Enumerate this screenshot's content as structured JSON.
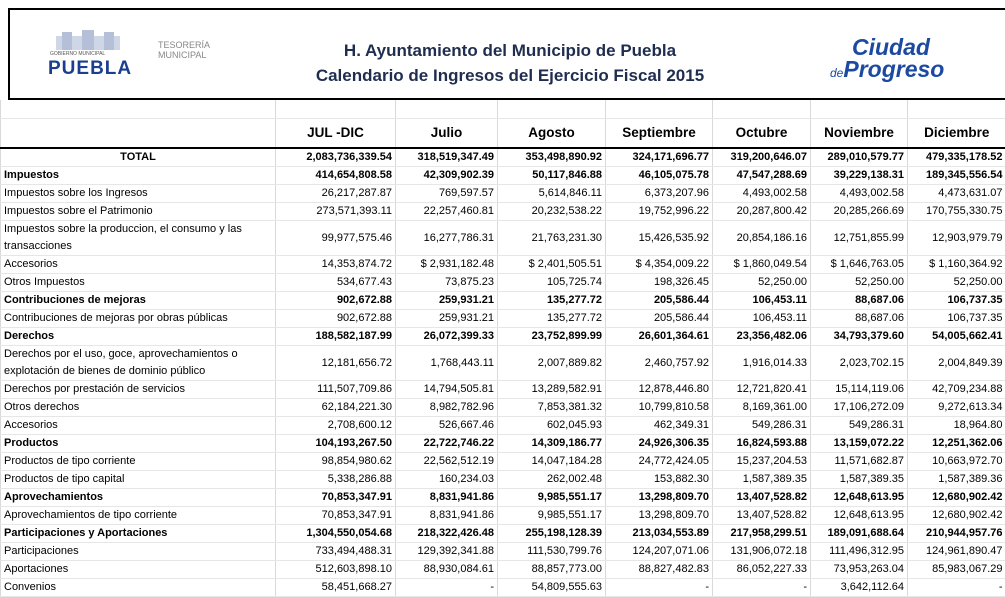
{
  "header": {
    "logo_left": {
      "name": "PUEBLA",
      "subtitle": "GOBIERNO MUNICIPAL",
      "dept": "TESORERÍA MUNICIPAL"
    },
    "title": "H. Ayuntamiento del Municipio de Puebla",
    "subtitle": "Calendario de Ingresos del Ejercicio Fiscal 2015",
    "logo_right": {
      "line1": "Ciudad",
      "small": "de",
      "line2": "Progreso"
    }
  },
  "table": {
    "columns": [
      "JUL -DIC",
      "Julio",
      "Agosto",
      "Septiembre",
      "Octubre",
      "Noviembre",
      "Diciembre"
    ],
    "rows": [
      {
        "label": "TOTAL",
        "bold": true,
        "center": true,
        "cells": [
          "2,083,736,339.54",
          "318,519,347.49",
          "353,498,890.92",
          "324,171,696.77",
          "319,200,646.07",
          "289,010,579.77",
          "479,335,178.52"
        ]
      },
      {
        "label": "Impuestos",
        "bold": true,
        "cells": [
          "414,654,808.58",
          "42,309,902.39",
          "50,117,846.88",
          "46,105,075.78",
          "47,547,288.69",
          "39,229,138.31",
          "189,345,556.54"
        ]
      },
      {
        "label": "Impuestos sobre los Ingresos",
        "cells": [
          "26,217,287.87",
          "769,597.57",
          "5,614,846.11",
          "6,373,207.96",
          "4,493,002.58",
          "4,493,002.58",
          "4,473,631.07"
        ]
      },
      {
        "label": "Impuestos sobre el Patrimonio",
        "cells": [
          "273,571,393.11",
          "22,257,460.81",
          "20,232,538.22",
          "19,752,996.22",
          "20,287,800.42",
          "20,285,266.69",
          "170,755,330.75"
        ]
      },
      {
        "label": "Impuestos sobre la produccion, el consumo y las transacciones",
        "cells": [
          "99,977,575.46",
          "16,277,786.31",
          "21,763,231.30",
          "15,426,535.92",
          "20,854,186.16",
          "12,751,855.99",
          "12,903,979.79"
        ]
      },
      {
        "label": "Accesorios",
        "cells": [
          "14,353,874.72",
          "$ 2,931,182.48",
          "$ 2,401,505.51",
          "$ 4,354,009.22",
          "$ 1,860,049.54",
          "$ 1,646,763.05",
          "$ 1,160,364.92"
        ]
      },
      {
        "label": "Otros Impuestos",
        "cells": [
          "534,677.43",
          "73,875.23",
          "105,725.74",
          "198,326.45",
          "52,250.00",
          "52,250.00",
          "52,250.00"
        ]
      },
      {
        "label": "Contribuciones de mejoras",
        "bold": true,
        "cells": [
          "902,672.88",
          "259,931.21",
          "135,277.72",
          "205,586.44",
          "106,453.11",
          "88,687.06",
          "106,737.35"
        ]
      },
      {
        "label": "Contribuciones de mejoras por obras públicas",
        "cells": [
          "902,672.88",
          "259,931.21",
          "135,277.72",
          "205,586.44",
          "106,453.11",
          "88,687.06",
          "106,737.35"
        ]
      },
      {
        "label": "Derechos",
        "bold": true,
        "cells": [
          "188,582,187.99",
          "26,072,399.33",
          "23,752,899.99",
          "26,601,364.61",
          "23,356,482.06",
          "34,793,379.60",
          "54,005,662.41"
        ]
      },
      {
        "label": "Derechos por el uso, goce, aprovechamientos o explotación de bienes de dominio público",
        "cells": [
          "12,181,656.72",
          "1,768,443.11",
          "2,007,889.82",
          "2,460,757.92",
          "1,916,014.33",
          "2,023,702.15",
          "2,004,849.39"
        ]
      },
      {
        "label": "Derechos por prestación de servicios",
        "cells": [
          "111,507,709.86",
          "14,794,505.81",
          "13,289,582.91",
          "12,878,446.80",
          "12,721,820.41",
          "15,114,119.06",
          "42,709,234.88"
        ]
      },
      {
        "label": "Otros derechos",
        "cells": [
          "62,184,221.30",
          "8,982,782.96",
          "7,853,381.32",
          "10,799,810.58",
          "8,169,361.00",
          "17,106,272.09",
          "9,272,613.34"
        ]
      },
      {
        "label": "Accesorios",
        "cells": [
          "2,708,600.12",
          "526,667.46",
          "602,045.93",
          "462,349.31",
          "549,286.31",
          "549,286.31",
          "18,964.80"
        ]
      },
      {
        "label": "Productos",
        "bold": true,
        "cells": [
          "104,193,267.50",
          "22,722,746.22",
          "14,309,186.77",
          "24,926,306.35",
          "16,824,593.88",
          "13,159,072.22",
          "12,251,362.06"
        ]
      },
      {
        "label": "Productos de tipo corriente",
        "cells": [
          "98,854,980.62",
          "22,562,512.19",
          "14,047,184.28",
          "24,772,424.05",
          "15,237,204.53",
          "11,571,682.87",
          "10,663,972.70"
        ]
      },
      {
        "label": "Productos de tipo capital",
        "cells": [
          "5,338,286.88",
          "160,234.03",
          "262,002.48",
          "153,882.30",
          "1,587,389.35",
          "1,587,389.35",
          "1,587,389.36"
        ]
      },
      {
        "label": "Aprovechamientos",
        "bold": true,
        "cells": [
          "70,853,347.91",
          "8,831,941.86",
          "9,985,551.17",
          "13,298,809.70",
          "13,407,528.82",
          "12,648,613.95",
          "12,680,902.42"
        ]
      },
      {
        "label": "Aprovechamientos de tipo corriente",
        "cells": [
          "70,853,347.91",
          "8,831,941.86",
          "9,985,551.17",
          "13,298,809.70",
          "13,407,528.82",
          "12,648,613.95",
          "12,680,902.42"
        ]
      },
      {
        "label": "Participaciones y Aportaciones",
        "bold": true,
        "cells": [
          "1,304,550,054.68",
          "218,322,426.48",
          "255,198,128.39",
          "213,034,553.89",
          "217,958,299.51",
          "189,091,688.64",
          "210,944,957.76"
        ]
      },
      {
        "label": "Participaciones",
        "cells": [
          "733,494,488.31",
          "129,392,341.88",
          "111,530,799.76",
          "124,207,071.06",
          "131,906,072.18",
          "111,496,312.95",
          "124,961,890.47"
        ]
      },
      {
        "label": "Aportaciones",
        "cells": [
          "512,603,898.10",
          "88,930,084.61",
          "88,857,773.00",
          "88,827,482.83",
          "86,052,227.33",
          "73,953,263.04",
          "85,983,067.29"
        ]
      },
      {
        "label": "Convenios",
        "cells": [
          "58,451,668.27",
          "-",
          "54,809,555.63",
          "-",
          "-",
          "3,642,112.64",
          "-"
        ]
      }
    ]
  }
}
